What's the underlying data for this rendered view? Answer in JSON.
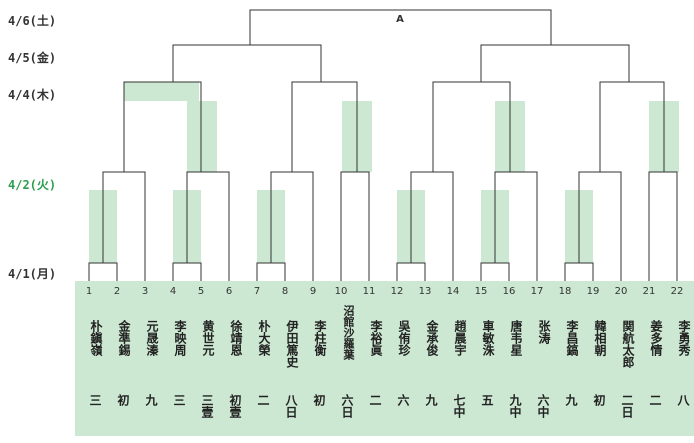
{
  "dates": {
    "d46": "4/6(土)",
    "d45": "4/5(金)",
    "d44": "4/4(木)",
    "d42": "4/2(火)",
    "d41": "4/1(月)"
  },
  "final_label": "A",
  "colors": {
    "panel": "#cde8d2",
    "block": "#cde8d2",
    "today": "#2e9e4f",
    "line": "#333333"
  },
  "players": [
    {
      "num": "1",
      "name": "朴鎭嶺",
      "rank": "三"
    },
    {
      "num": "2",
      "name": "金準錫",
      "rank": "初"
    },
    {
      "num": "3",
      "name": "元晟溱",
      "rank": "九"
    },
    {
      "num": "4",
      "name": "李映周",
      "rank": "三"
    },
    {
      "num": "5",
      "name": "黄世元",
      "rank": "三壹"
    },
    {
      "num": "6",
      "name": "徐靖恩",
      "rank": "初壹"
    },
    {
      "num": "7",
      "name": "朴大榮",
      "rank": "二"
    },
    {
      "num": "8",
      "name": "伊田篤史",
      "rank": "八日"
    },
    {
      "num": "9",
      "name": "李柱衡",
      "rank": "初"
    },
    {
      "num": "10",
      "name": "沼館沙羅葉",
      "rank": "六日"
    },
    {
      "num": "11",
      "name": "李裕眞",
      "rank": "二"
    },
    {
      "num": "12",
      "name": "吳侑珍",
      "rank": "六"
    },
    {
      "num": "13",
      "name": "金承俊",
      "rank": "九"
    },
    {
      "num": "14",
      "name": "趙晨宇",
      "rank": "七中"
    },
    {
      "num": "15",
      "name": "車敏洙",
      "rank": "五"
    },
    {
      "num": "16",
      "name": "唐韦星",
      "rank": "九中"
    },
    {
      "num": "17",
      "name": "张涛",
      "rank": "六中"
    },
    {
      "num": "18",
      "name": "李昌鎬",
      "rank": "九"
    },
    {
      "num": "19",
      "name": "韓相朝",
      "rank": "初"
    },
    {
      "num": "20",
      "name": "関航太郎",
      "rank": "二日"
    },
    {
      "num": "21",
      "name": "姜多情",
      "rank": "二"
    },
    {
      "num": "22",
      "name": "李勇秀",
      "rank": "八"
    }
  ]
}
